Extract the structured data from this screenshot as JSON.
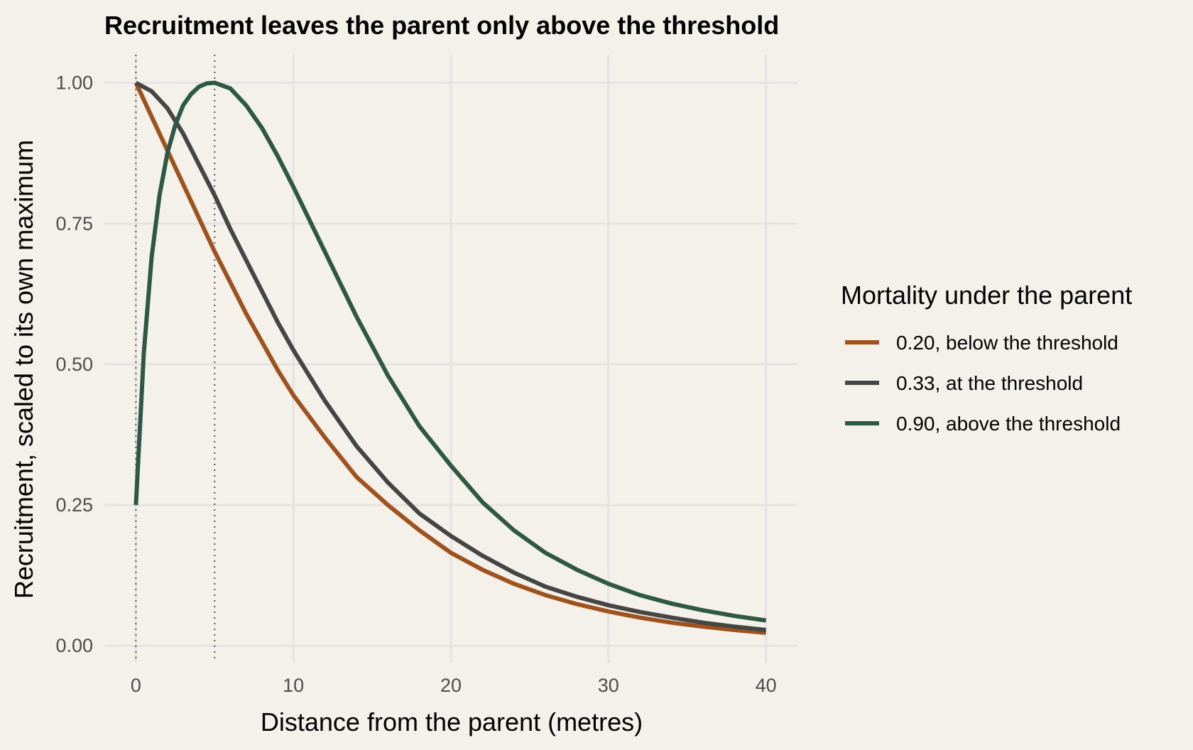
{
  "chart_data": {
    "type": "line",
    "title": "Recruitment leaves the parent only above the threshold",
    "xlabel": "Distance from the parent (metres)",
    "ylabel": "Recruitment, scaled to its own maximum",
    "xlim": [
      -2,
      42
    ],
    "ylim": [
      -0.03,
      1.05
    ],
    "x_ticks": [
      0,
      10,
      20,
      30,
      40
    ],
    "x_tick_labels": [
      "0",
      "10",
      "20",
      "30",
      "40"
    ],
    "y_ticks": [
      0,
      0.25,
      0.5,
      0.75,
      1.0
    ],
    "y_tick_labels": [
      "0.00",
      "0.25",
      "0.50",
      "0.75",
      "1.00"
    ],
    "grid": true,
    "reference_lines_x": [
      0,
      5
    ],
    "legend": {
      "title": "Mortality under the parent",
      "position": "right"
    },
    "series": [
      {
        "name": "0.20, below the threshold",
        "color": "#a0521d",
        "x": [
          0,
          1,
          2,
          3,
          4,
          5,
          6,
          7,
          8,
          9,
          10,
          12,
          14,
          16,
          18,
          20,
          22,
          24,
          26,
          28,
          30,
          32,
          34,
          36,
          38,
          40
        ],
        "y": [
          1.0,
          0.94,
          0.88,
          0.82,
          0.76,
          0.7,
          0.645,
          0.59,
          0.54,
          0.49,
          0.445,
          0.37,
          0.3,
          0.25,
          0.205,
          0.165,
          0.135,
          0.11,
          0.09,
          0.074,
          0.061,
          0.05,
          0.041,
          0.034,
          0.028,
          0.023
        ]
      },
      {
        "name": "0.33, at the threshold",
        "color": "#454545",
        "x": [
          0,
          1,
          2,
          3,
          4,
          5,
          6,
          7,
          8,
          9,
          10,
          12,
          14,
          16,
          18,
          20,
          22,
          24,
          26,
          28,
          30,
          32,
          34,
          36,
          38,
          40
        ],
        "y": [
          1.0,
          0.985,
          0.955,
          0.91,
          0.855,
          0.8,
          0.74,
          0.685,
          0.63,
          0.575,
          0.525,
          0.435,
          0.355,
          0.29,
          0.235,
          0.195,
          0.16,
          0.13,
          0.105,
          0.087,
          0.072,
          0.06,
          0.05,
          0.041,
          0.034,
          0.028
        ]
      },
      {
        "name": "0.90, above the threshold",
        "color": "#2e5844",
        "x": [
          0,
          0.5,
          1,
          1.5,
          2,
          2.5,
          3,
          3.5,
          4,
          4.5,
          5,
          6,
          7,
          8,
          9,
          10,
          12,
          14,
          16,
          18,
          20,
          22,
          24,
          26,
          28,
          30,
          32,
          34,
          36,
          38,
          40
        ],
        "y": [
          0.25,
          0.52,
          0.69,
          0.8,
          0.875,
          0.925,
          0.96,
          0.98,
          0.993,
          0.999,
          1.0,
          0.99,
          0.96,
          0.92,
          0.87,
          0.815,
          0.7,
          0.585,
          0.48,
          0.39,
          0.32,
          0.255,
          0.205,
          0.165,
          0.135,
          0.11,
          0.09,
          0.075,
          0.063,
          0.053,
          0.045
        ]
      }
    ]
  }
}
